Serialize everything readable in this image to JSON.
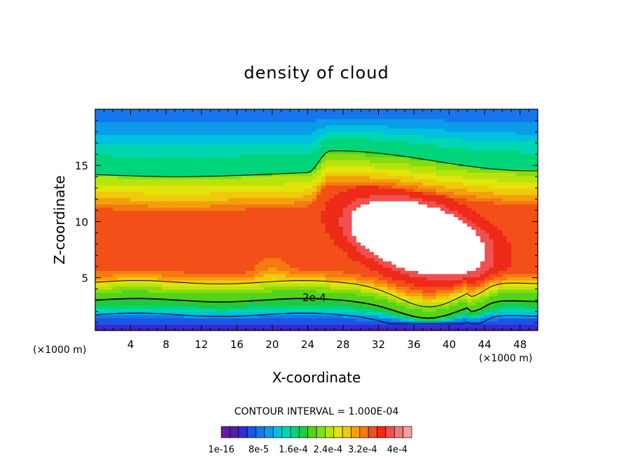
{
  "chart_data": {
    "type": "heatmap",
    "title": "density of cloud",
    "xlabel": "X-coordinate",
    "ylabel": "Z-coordinate",
    "x_unit_left": "(×1000 m)",
    "x_unit_right": "(×1000 m)",
    "xlim": [
      0,
      50
    ],
    "ylim": [
      0.3,
      20
    ],
    "x_ticks": [
      4,
      8,
      12,
      16,
      20,
      24,
      28,
      32,
      36,
      40,
      44,
      48
    ],
    "y_ticks": [
      5,
      10,
      15
    ],
    "contour_interval_text": "CONTOUR INTERVAL = 1.000E-04",
    "contour_label": "2e-4",
    "colorbar_labels": [
      "1e-16",
      "8e-5",
      "1.6e-4",
      "2.4e-4",
      "3.2e-4",
      "4e-4"
    ],
    "colorbar_levels": [
      1e-16,
      2e-05,
      4e-05,
      6e-05,
      8e-05,
      0.0001,
      0.00012,
      0.00014,
      0.00016,
      0.00018,
      0.0002,
      0.00022,
      0.00024,
      0.00026,
      0.00028,
      0.0003,
      0.00032,
      0.00034,
      0.00036,
      0.00038,
      0.0004
    ],
    "colorbar_colors": [
      "#6a1a9a",
      "#4b1fb8",
      "#2f2fd6",
      "#1f55e6",
      "#1478ec",
      "#0a9ce8",
      "#00c0e0",
      "#00d6b4",
      "#00d47a",
      "#1ccc3c",
      "#52d41a",
      "#86dc10",
      "#b8e40c",
      "#e2e40a",
      "#f0c80c",
      "#f4a00c",
      "#f47a12",
      "#f25018",
      "#ee2a18",
      "#f05050",
      "#f47878",
      "#f6a0a0"
    ],
    "legend": "bottom colorbar",
    "grid": false
  }
}
